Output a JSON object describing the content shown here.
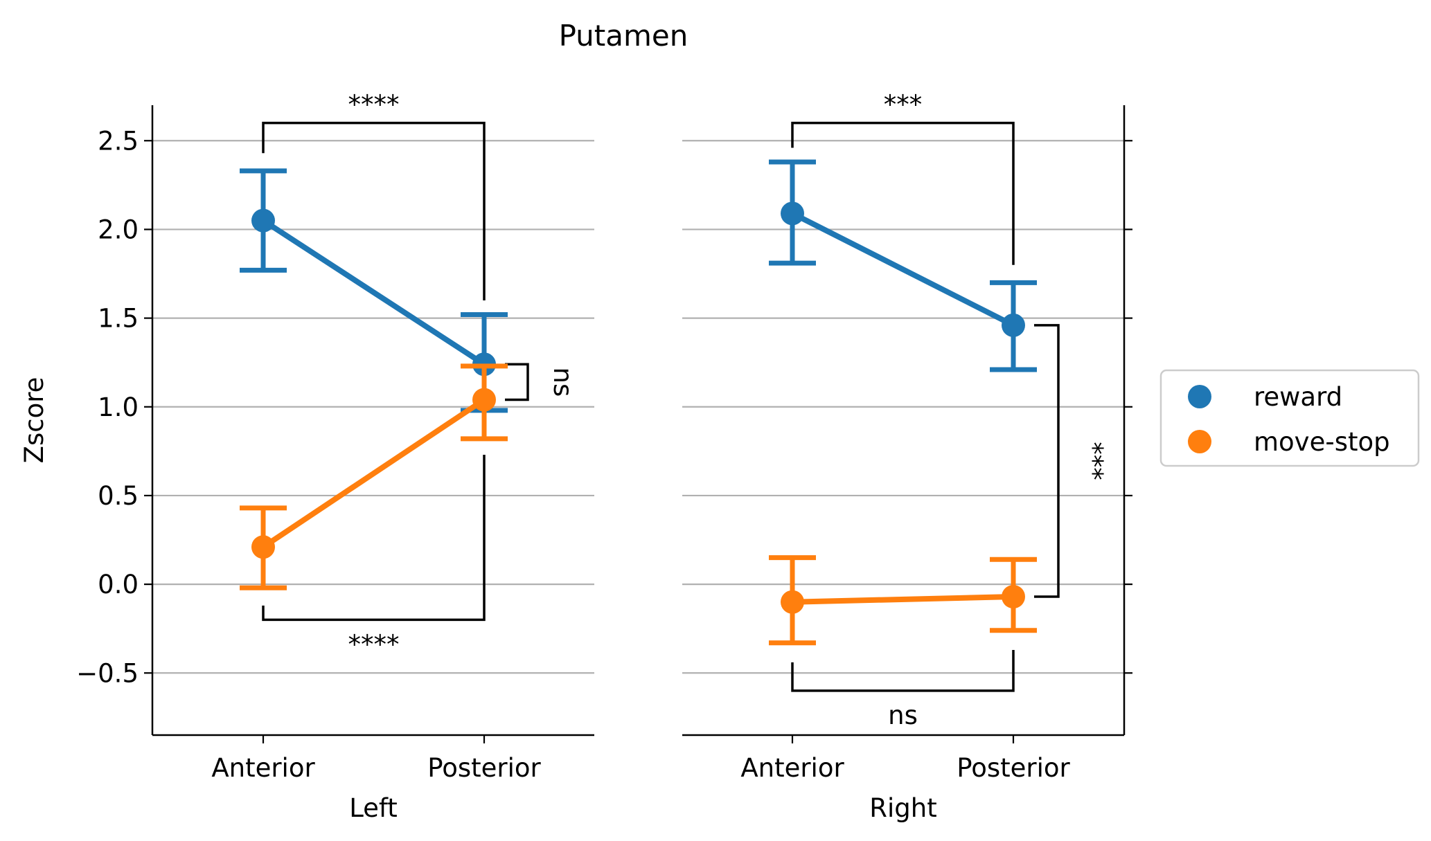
{
  "chart_data": {
    "type": "point",
    "title": "Putamen",
    "ylabel": "Zscore",
    "ylim": [
      -0.85,
      2.7
    ],
    "yticks": [
      -0.5,
      0.0,
      0.5,
      1.0,
      1.5,
      2.0,
      2.5
    ],
    "ytick_labels": [
      "−0.5",
      "0.0",
      "0.5",
      "1.0",
      "1.5",
      "2.0",
      "2.5"
    ],
    "grid": "horizontal",
    "legend_placement": "right",
    "legend": [
      {
        "name": "reward",
        "color": "#1f77b4"
      },
      {
        "name": "move-stop",
        "color": "#ff7f0e"
      }
    ],
    "panels": [
      {
        "xlabel": "Left",
        "categories": [
          "Anterior",
          "Posterior"
        ],
        "series": [
          {
            "name": "reward",
            "color": "#1f77b4",
            "values": [
              2.05,
              1.24
            ],
            "ci_low": [
              1.77,
              0.98
            ],
            "ci_high": [
              2.33,
              1.52
            ]
          },
          {
            "name": "move-stop",
            "color": "#ff7f0e",
            "values": [
              0.21,
              1.04
            ],
            "ci_low": [
              -0.02,
              0.82
            ],
            "ci_high": [
              0.43,
              1.23
            ]
          }
        ],
        "annotations": [
          {
            "text": "****",
            "type": "bracket-top",
            "from": 0,
            "to": 1,
            "y": 2.6,
            "leg_start": [
              2.43,
              1.6
            ]
          },
          {
            "text": "****",
            "type": "bracket-bottom",
            "from": 0,
            "to": 1,
            "y": -0.2,
            "leg_start": [
              -0.12,
              0.73
            ]
          },
          {
            "text": "ns",
            "type": "bracket-side",
            "at": 1,
            "y_from": 1.24,
            "y_to": 1.04
          }
        ]
      },
      {
        "xlabel": "Right",
        "categories": [
          "Anterior",
          "Posterior"
        ],
        "series": [
          {
            "name": "reward",
            "color": "#1f77b4",
            "values": [
              2.09,
              1.46
            ],
            "ci_low": [
              1.81,
              1.21
            ],
            "ci_high": [
              2.38,
              1.7
            ]
          },
          {
            "name": "move-stop",
            "color": "#ff7f0e",
            "values": [
              -0.1,
              -0.07
            ],
            "ci_low": [
              -0.33,
              -0.26
            ],
            "ci_high": [
              0.15,
              0.14
            ]
          }
        ],
        "annotations": [
          {
            "text": "***",
            "type": "bracket-top",
            "from": 0,
            "to": 1,
            "y": 2.6,
            "leg_start": [
              2.46,
              1.8
            ]
          },
          {
            "text": "ns",
            "type": "bracket-bottom",
            "from": 0,
            "to": 1,
            "y": -0.6,
            "leg_start": [
              -0.44,
              -0.37
            ]
          },
          {
            "text": "***",
            "type": "bracket-side",
            "at": 1,
            "y_from": 1.46,
            "y_to": -0.07
          }
        ]
      }
    ]
  }
}
